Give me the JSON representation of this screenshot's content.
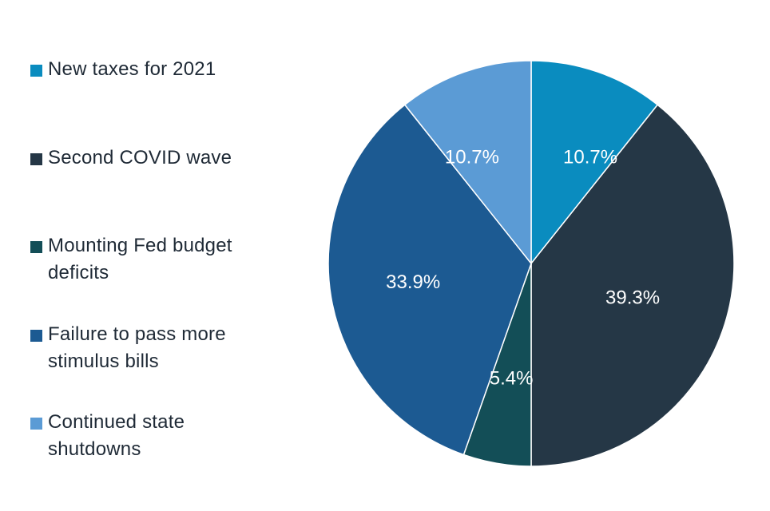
{
  "chart_data": {
    "type": "pie",
    "categories": [
      "New taxes for 2021",
      "Second COVID wave",
      "Mounting Fed budget deficits",
      "Failure to pass more stimulus bills",
      "Continued state shutdowns"
    ],
    "values": [
      10.7,
      39.3,
      5.4,
      33.9,
      10.7
    ],
    "data_labels": [
      "10.7%",
      "39.3%",
      "5.4%",
      "33.9%",
      "10.7%"
    ],
    "colors": [
      "#0a8cbf",
      "#253746",
      "#134e57",
      "#1c5a92",
      "#5b9bd5"
    ],
    "legend_position": "left",
    "start_angle_deg": 0,
    "direction": "clockwise"
  },
  "legend": {
    "items": [
      {
        "label": "New taxes for 2021",
        "color": "#0a8cbf"
      },
      {
        "label": "Second COVID wave",
        "color": "#253746"
      },
      {
        "label": "Mounting Fed budget deficits",
        "color": "#134e57"
      },
      {
        "label": "Failure to pass more stimulus bills",
        "color": "#1c5a92"
      },
      {
        "label": "Continued state shutdowns",
        "color": "#5b9bd5"
      }
    ]
  }
}
